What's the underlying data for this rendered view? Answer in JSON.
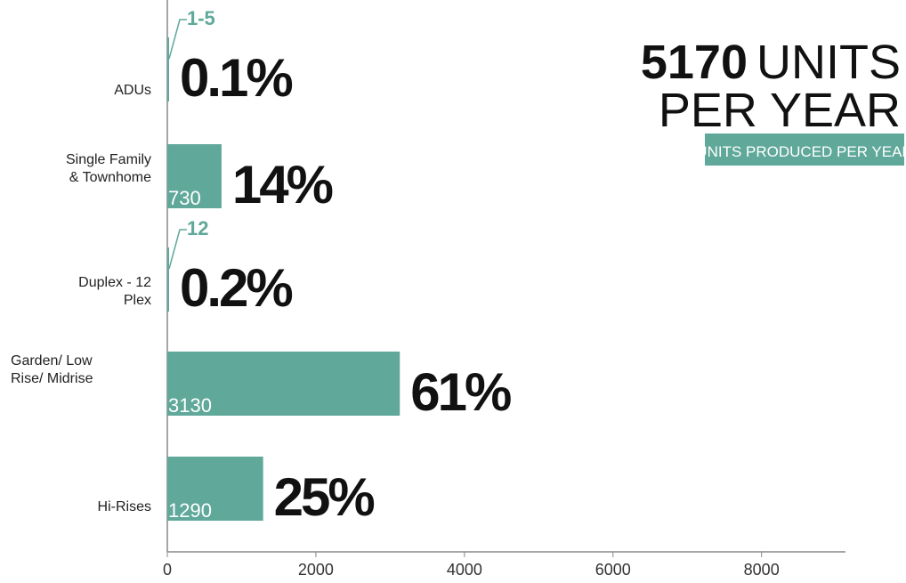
{
  "chart_data": {
    "type": "bar",
    "orientation": "horizontal",
    "title": {
      "number": "5170",
      "line1": "UNITS",
      "line2": "PER YEAR"
    },
    "subtitle": "UNITS PRODUCED PER YEAR",
    "categories": [
      "ADUs",
      "Single Family & Townhome",
      "Duplex - 12 Plex",
      "Garden/ Low Rise/ Midrise",
      "Hi-Rises"
    ],
    "values": [
      3,
      730,
      12,
      3130,
      1290
    ],
    "value_labels": [
      "1-5",
      "730",
      "12",
      "3130",
      "1290"
    ],
    "percent_labels": [
      "0.1%",
      "14%",
      "0.2%",
      "61%",
      "25%"
    ],
    "color": "#5fa89a",
    "xlim": [
      0,
      9130
    ],
    "xticks": [
      0,
      2000,
      4000,
      6000,
      8000
    ],
    "grid": false
  }
}
